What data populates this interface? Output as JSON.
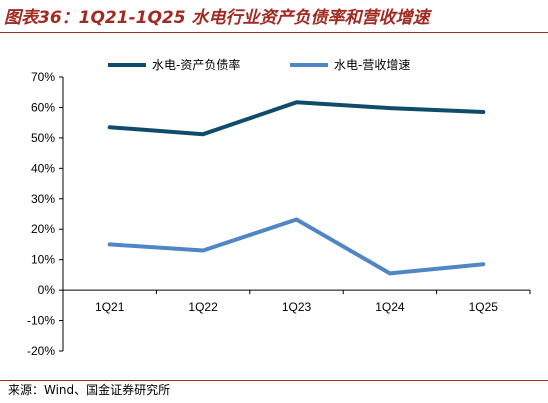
{
  "title": "图表36：1Q21-1Q25 水电行业资产负债率和营收增速",
  "source": "来源：Wind、国金证券研究所",
  "colors": {
    "series1": "#0F4C6B",
    "series2": "#4F86C6",
    "accent": "#A12A23"
  },
  "chart_data": {
    "type": "line",
    "categories": [
      "1Q21",
      "1Q22",
      "1Q23",
      "1Q24",
      "1Q25"
    ],
    "series": [
      {
        "name": "水电-资产负债率",
        "values": [
          53.5,
          51.2,
          61.7,
          59.8,
          58.5
        ]
      },
      {
        "name": "水电-营收增速",
        "values": [
          15.0,
          13.0,
          23.2,
          5.5,
          8.5
        ]
      }
    ],
    "ylim": [
      -20,
      70
    ],
    "yticks": [
      "-20%",
      "-10%",
      "0%",
      "10%",
      "20%",
      "30%",
      "40%",
      "50%",
      "60%",
      "70%"
    ],
    "ytick_values": [
      -20,
      -10,
      0,
      10,
      20,
      30,
      40,
      50,
      60,
      70
    ],
    "legend_position": "top-center",
    "grid": false
  }
}
